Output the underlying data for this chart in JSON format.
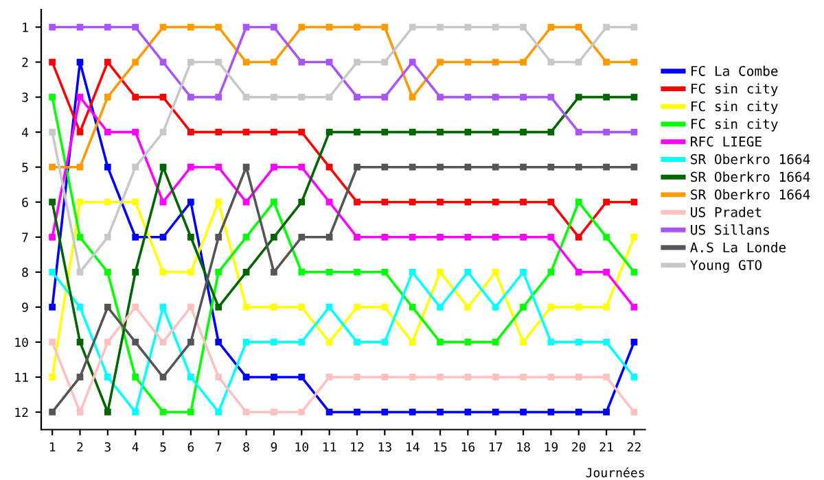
{
  "chart_data": {
    "type": "line",
    "xlabel": "Journées",
    "x": [
      1,
      2,
      3,
      4,
      5,
      6,
      7,
      8,
      9,
      10,
      11,
      12,
      13,
      14,
      15,
      16,
      17,
      18,
      19,
      20,
      21,
      22
    ],
    "xlim": [
      0.6,
      22.4
    ],
    "xticks": [
      1,
      2,
      3,
      4,
      5,
      6,
      7,
      8,
      9,
      10,
      11,
      12,
      13,
      14,
      15,
      16,
      17,
      18,
      19,
      20,
      21,
      22
    ],
    "ylim": [
      12.5,
      0.5
    ],
    "yticks": [
      1,
      2,
      3,
      4,
      5,
      6,
      7,
      8,
      9,
      10,
      11,
      12
    ],
    "grid": false,
    "legend": "right",
    "marker": "square",
    "line_style": "solid",
    "series": [
      {
        "name": "FC La Combe",
        "color": "#0000ff",
        "values": [
          9,
          2,
          5,
          7,
          7,
          6,
          10,
          11,
          11,
          11,
          12,
          12,
          12,
          12,
          12,
          12,
          12,
          12,
          12,
          12,
          12,
          10
        ]
      },
      {
        "name": "FC sin city",
        "color": "#ff0000",
        "values": [
          2,
          4,
          2,
          3,
          3,
          4,
          4,
          4,
          4,
          4,
          5,
          6,
          6,
          6,
          6,
          6,
          6,
          6,
          6,
          7,
          6,
          6
        ]
      },
      {
        "name": "FC sin city",
        "color": "#ffff00",
        "values": [
          11,
          6,
          6,
          6,
          8,
          8,
          6,
          9,
          9,
          9,
          10,
          9,
          9,
          10,
          8,
          9,
          8,
          10,
          9,
          9,
          9,
          7
        ]
      },
      {
        "name": "FC sin city",
        "color": "#00ff00",
        "values": [
          3,
          7,
          8,
          11,
          12,
          12,
          8,
          7,
          6,
          8,
          8,
          8,
          8,
          9,
          10,
          10,
          10,
          9,
          8,
          6,
          7,
          8
        ]
      },
      {
        "name": "RFC LIEGE",
        "color": "#ff00ff",
        "values": [
          7,
          3,
          4,
          4,
          6,
          5,
          5,
          6,
          5,
          5,
          6,
          7,
          7,
          7,
          7,
          7,
          7,
          7,
          7,
          8,
          8,
          9
        ]
      },
      {
        "name": "SR Oberkro 1664",
        "color": "#00ffff",
        "values": [
          8,
          9,
          11,
          12,
          9,
          11,
          12,
          10,
          10,
          10,
          9,
          10,
          10,
          8,
          9,
          8,
          9,
          8,
          10,
          10,
          10,
          11
        ]
      },
      {
        "name": "SR Oberkro 1664",
        "color": "#006600",
        "values": [
          6,
          10,
          12,
          8,
          5,
          7,
          9,
          8,
          7,
          6,
          4,
          4,
          4,
          4,
          4,
          4,
          4,
          4,
          4,
          3,
          3,
          3
        ]
      },
      {
        "name": "SR Oberkro 1664",
        "color": "#ff9900",
        "values": [
          5,
          5,
          3,
          2,
          1,
          1,
          1,
          2,
          2,
          1,
          1,
          1,
          1,
          3,
          2,
          2,
          2,
          2,
          1,
          1,
          2,
          2
        ]
      },
      {
        "name": "US Pradet",
        "color": "#ffc0c0",
        "values": [
          10,
          12,
          10,
          9,
          10,
          9,
          11,
          12,
          12,
          12,
          11,
          11,
          11,
          11,
          11,
          11,
          11,
          11,
          11,
          11,
          11,
          12
        ]
      },
      {
        "name": "US Sillans",
        "color": "#a855f7",
        "values": [
          1,
          1,
          1,
          1,
          2,
          3,
          3,
          1,
          1,
          2,
          2,
          3,
          3,
          2,
          3,
          3,
          3,
          3,
          3,
          4,
          4,
          4
        ]
      },
      {
        "name": "A.S La Londe",
        "color": "#555555",
        "values": [
          12,
          11,
          9,
          10,
          11,
          10,
          7,
          5,
          8,
          7,
          7,
          5,
          5,
          5,
          5,
          5,
          5,
          5,
          5,
          5,
          5,
          5
        ]
      },
      {
        "name": "Young GTO",
        "color": "#c8c8c8",
        "values": [
          4,
          8,
          7,
          5,
          4,
          2,
          2,
          3,
          3,
          3,
          3,
          2,
          2,
          1,
          1,
          1,
          1,
          1,
          2,
          2,
          1,
          1
        ]
      }
    ]
  }
}
